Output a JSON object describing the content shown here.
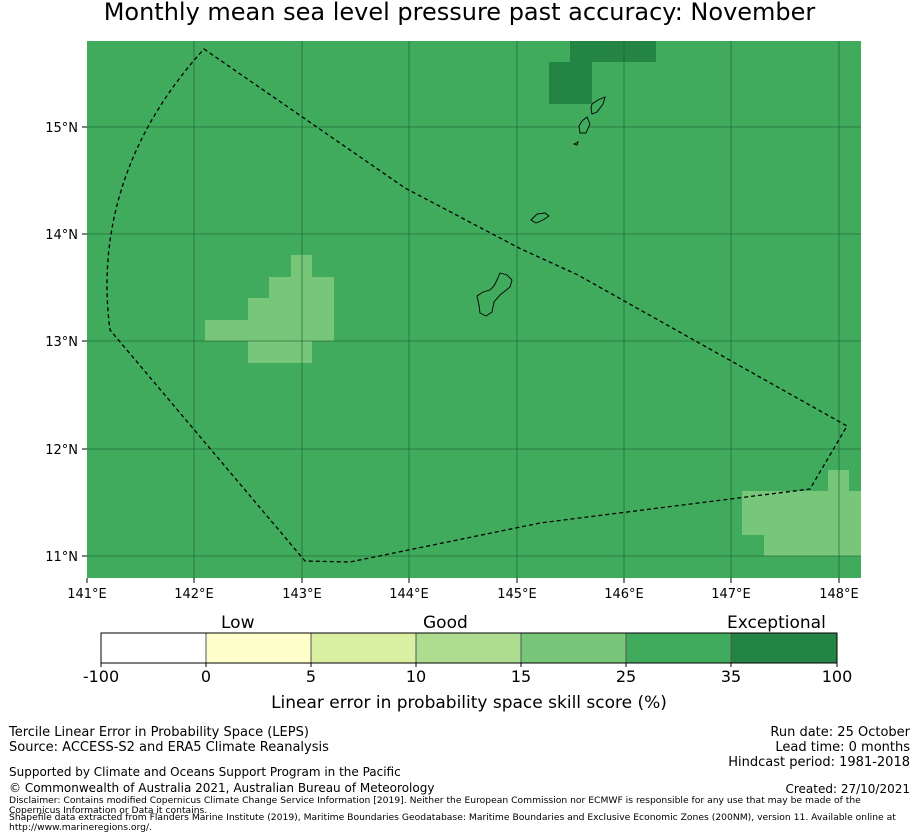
{
  "title": "Monthly mean sea level pressure past accuracy: November",
  "map": {
    "lon_range": [
      141.0,
      148.2
    ],
    "lat_range": [
      10.8,
      15.8
    ],
    "x_ticks": [
      "141°E",
      "142°E",
      "143°E",
      "144°E",
      "145°E",
      "146°E",
      "147°E",
      "148°E"
    ],
    "y_ticks": [
      "15°N",
      "14°N",
      "13°N",
      "12°N",
      "11°N"
    ],
    "cell_colors": {
      "c25_35": "#41ab5d",
      "c15_25": "#78c679",
      "c35_100": "#238443"
    },
    "regions": [
      {
        "category": "15-25",
        "lon": [
          142.1,
          143.3
        ],
        "lat": [
          12.8,
          13.8
        ],
        "area": "west patch"
      },
      {
        "category": "15-25",
        "lon": [
          147.1,
          148.2
        ],
        "lat": [
          11.0,
          11.8
        ],
        "area": "south-east patch"
      },
      {
        "category": "35-100",
        "lon": [
          145.3,
          146.3
        ],
        "lat": [
          15.2,
          15.8
        ],
        "area": "north patch"
      }
    ],
    "eez_boundary": "dashed line",
    "grid_color": "#1a5e31"
  },
  "colorbar": {
    "categories": [
      "Low",
      "Good",
      "Exceptional"
    ],
    "ticks": [
      "-100",
      "0",
      "5",
      "10",
      "15",
      "25",
      "35",
      "100"
    ],
    "colors": [
      "#ffffff",
      "#ffffcc",
      "#d9f0a3",
      "#addd8e",
      "#78c679",
      "#41ab5d",
      "#238443"
    ],
    "label": "Linear error in probability space skill score (%)"
  },
  "footer": {
    "method": "Tercile Linear Error in Probability Space (LEPS)",
    "source": "Source: ACCESS-S2 and ERA5 Climate Reanalysis",
    "support": "Supported by Climate and Oceans Support Program in the Pacific",
    "copyright": "© Commonwealth of Australia 2021, Australian Bureau of Meteorology",
    "disclaimer_1": "Disclaimer: Contains modified Copernicus Climate Change Service Information [2019]. Neither the European Commission nor ECMWF is responsible for any use that may be made of the",
    "disclaimer_2": "Copernicus Information or Data it contains.",
    "shapefile_1": "Shapefile data extracted from Flanders Marine Institute (2019), Maritime Boundaries Geodatabase: Maritime Boundaries and Exclusive Economic Zones (200NM), version 11. Available online at",
    "shapefile_2": "http://www.marineregions.org/.",
    "run_date": "Run date: 25 October",
    "lead_time": "Lead time: 0 months",
    "hindcast": "Hindcast period: 1981-2018",
    "created": "Created: 27/10/2021"
  }
}
